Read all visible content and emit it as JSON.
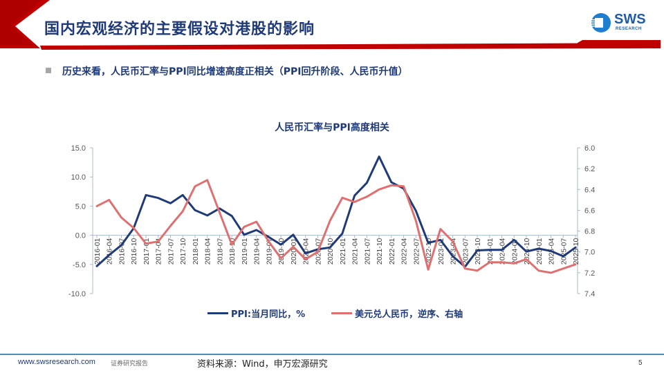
{
  "header": {
    "title": "国内宏观经济的主要假设对港股的影响",
    "logo_text": "SWS",
    "logo_sub": "RESEARCH",
    "accent_color": "#c00000",
    "title_color": "#1f3a78"
  },
  "subtitle": "历史来看，人民币汇率与PPI同比增速高度正相关（PPI回升阶段、人民币升值）",
  "footer": {
    "url": "www.swsresearch.com",
    "tag": "证券研究报告",
    "source": "资料来源：Wind，申万宏源研究",
    "page": "5"
  },
  "chart_data": {
    "type": "line",
    "title": "人民币汇率与PPI高度相关",
    "xlabel": "",
    "ylabel": "PPI:当月同比，%",
    "y2label": "美元兑人民币（逆序）",
    "ylim": [
      -10.0,
      15.0
    ],
    "y2lim": [
      7.4,
      6.0
    ],
    "y2_inverted": true,
    "yticks": [
      "15.0",
      "10.0",
      "5.0",
      "0.0",
      "-5.0",
      "-10.0"
    ],
    "y2ticks": [
      "6.0",
      "6.2",
      "6.4",
      "6.6",
      "6.8",
      "7.0",
      "7.2",
      "7.4"
    ],
    "grid": false,
    "legend_position": "bottom",
    "xtick_labels": [
      "2016-01",
      "2016-04",
      "2016-07",
      "2016-10",
      "2017-01",
      "2017-04",
      "2017-07",
      "2017-10",
      "2018-01",
      "2018-04",
      "2018-07",
      "2018-10",
      "2019-01",
      "2019-04",
      "2019-07",
      "2019-10",
      "2020-01",
      "2020-04",
      "2020-07",
      "2020-10",
      "2021-01",
      "2021-04",
      "2021-07",
      "2021-10",
      "2022-01",
      "2022-04",
      "2022-07",
      "2022-10",
      "2023-01",
      "2023-04",
      "2023-07",
      "2023-10",
      "2024-01",
      "2024-04",
      "2024-07",
      "2024-10",
      "2025-01",
      "2025-04",
      "2025-07",
      "2025-10"
    ],
    "x_start": "2016-01",
    "x_end": "2025-10",
    "series": [
      {
        "name": "PPI:当月同比，%",
        "axis": "left",
        "color": "#1f3a78",
        "quarterly_values": [
          -5.3,
          -3.4,
          -1.7,
          1.2,
          6.9,
          6.4,
          5.5,
          6.9,
          4.3,
          3.4,
          4.6,
          3.3,
          0.1,
          0.9,
          -0.3,
          -1.6,
          0.1,
          -3.1,
          -2.4,
          -2.1,
          0.3,
          6.8,
          9.0,
          13.5,
          9.1,
          8.0,
          4.2,
          -1.3,
          -0.8,
          -3.6,
          -5.4,
          -2.6,
          -2.5,
          -2.5,
          -0.8,
          -2.8,
          -2.3,
          -2.7,
          -3.6,
          -2.1
        ]
      },
      {
        "name": "美元兑人民币，逆序、右轴",
        "axis": "right",
        "color": "#e07070",
        "quarterly_values": [
          6.56,
          6.5,
          6.67,
          6.77,
          6.92,
          6.9,
          6.75,
          6.61,
          6.37,
          6.31,
          6.62,
          6.93,
          6.76,
          6.71,
          6.9,
          7.06,
          6.95,
          7.07,
          7.0,
          6.7,
          6.48,
          6.52,
          6.47,
          6.4,
          6.36,
          6.37,
          6.7,
          7.17,
          6.78,
          6.9,
          7.16,
          7.18,
          7.1,
          7.1,
          7.11,
          7.07,
          7.18,
          7.2,
          7.16,
          7.12
        ]
      }
    ]
  }
}
